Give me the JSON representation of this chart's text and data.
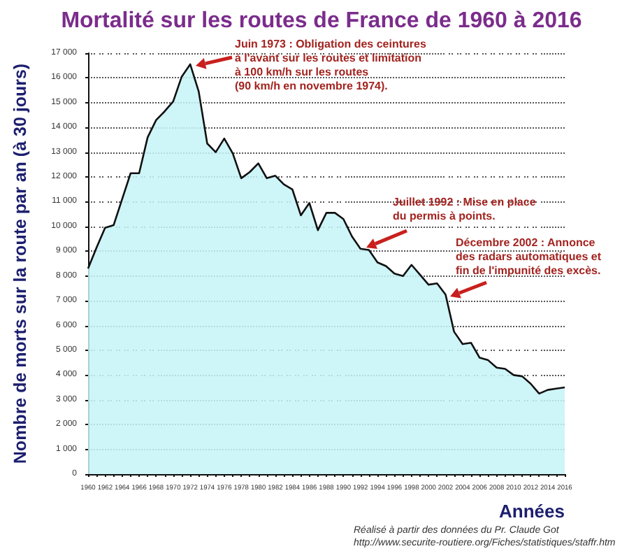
{
  "chart_data": {
    "type": "area",
    "title": "Mortalité sur les routes de France de 1960 à 2016",
    "xlabel": "Années",
    "ylabel": "Nombre de morts sur la route par an (à 30 jours)",
    "categories": [
      "1960",
      null,
      "1962",
      null,
      "1964",
      null,
      "1966",
      null,
      "1968",
      null,
      "1970",
      null,
      "1972",
      null,
      "1974",
      null,
      "1976",
      null,
      "1978",
      null,
      "1980",
      null,
      "1982",
      null,
      "1984",
      null,
      "1986",
      null,
      "1988",
      null,
      "1990",
      null,
      "1992",
      null,
      "1994",
      null,
      "1996",
      null,
      "1998",
      null,
      "2000",
      null,
      "2002",
      null,
      "2004",
      null,
      "2006",
      null,
      "2008",
      null,
      "2010",
      null,
      "2012",
      null,
      "2014",
      null,
      "2016"
    ],
    "series": [
      {
        "color": "#c6f3f6",
        "values": [
          8300,
          9150,
          9950,
          10050,
          11100,
          12150,
          12150,
          13600,
          14300,
          14650,
          15050,
          16050,
          16550,
          15450,
          13350,
          13000,
          13550,
          12950,
          11950,
          12200,
          12550,
          11950,
          12050,
          11700,
          11500,
          10450,
          10950,
          9850,
          10550,
          10550,
          10300,
          9600,
          9100,
          9050,
          8550,
          8400,
          8100,
          8000,
          8450,
          8050,
          7650,
          7700,
          7250,
          5750,
          5250,
          5300,
          4700,
          4600,
          4300,
          4250,
          4000,
          3950,
          3650,
          3250,
          3400,
          3450,
          3500
        ]
      }
    ],
    "ylim": [
      0,
      17000
    ],
    "yticks": [
      {
        "value": 0,
        "label": "0"
      },
      {
        "value": 1000,
        "label": "1 000"
      },
      {
        "value": 2000,
        "label": "2 000"
      },
      {
        "value": 3000,
        "label": "3 000"
      },
      {
        "value": 4000,
        "label": "4 000"
      },
      {
        "value": 5000,
        "label": "5 000"
      },
      {
        "value": 6000,
        "label": "6 000"
      },
      {
        "value": 7000,
        "label": "7 000"
      },
      {
        "value": 8000,
        "label": "8 000"
      },
      {
        "value": 9000,
        "label": "9 000"
      },
      {
        "value": 10000,
        "label": "10 000"
      },
      {
        "value": 11000,
        "label": "11 000"
      },
      {
        "value": 12000,
        "label": "12 000"
      },
      {
        "value": 13000,
        "label": "13 000"
      },
      {
        "value": 14000,
        "label": "14 000"
      },
      {
        "value": 15000,
        "label": "15 000"
      },
      {
        "value": 16000,
        "label": "16 000"
      },
      {
        "value": 17000,
        "label": "17 000"
      }
    ],
    "grid": true,
    "marker": "none",
    "line_style": "solid",
    "annotations": [
      "Juin 1973 : Obligation des ceintures\nà l'avant sur les routes et limitation\nà 100 km/h sur les routes\n(90 km/h en novembre 1974).",
      "Juillet 1992 : Mise en place\ndu permis à points.",
      "Décembre 2002 : Annonce\ndes radars automatiques et\nfin de l'impunité des excès.",
      "Réalisé à partir des données du Pr. Claude Got",
      "http://www.securite-routiere.org/Fiches/statistiques/staffr.htm"
    ]
  }
}
